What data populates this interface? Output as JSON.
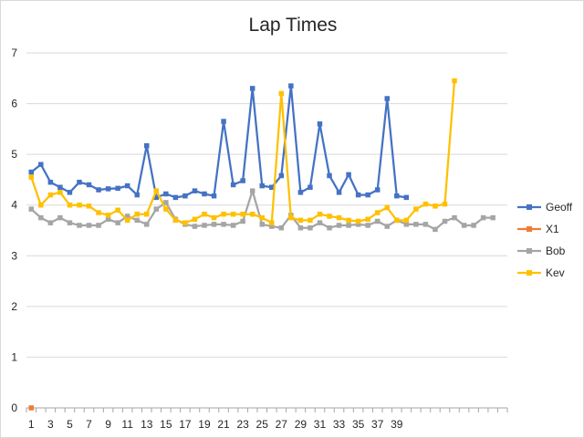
{
  "chart_data": {
    "type": "line",
    "title": "Lap Times",
    "xlabel": "",
    "ylabel": "",
    "ylim": [
      0,
      7
    ],
    "yticks": [
      0,
      1,
      2,
      3,
      4,
      5,
      6,
      7
    ],
    "x_categories_count": 50,
    "x_tick_labels": [
      "1",
      "3",
      "5",
      "7",
      "9",
      "11",
      "13",
      "15",
      "17",
      "19",
      "21",
      "23",
      "25",
      "27",
      "29",
      "31",
      "33",
      "35",
      "37",
      "39"
    ],
    "grid": true,
    "legend_position": "right",
    "series": [
      {
        "name": "Geoff",
        "color": "#4472c4",
        "values": [
          4.65,
          4.8,
          4.45,
          4.35,
          4.25,
          4.45,
          4.4,
          4.3,
          4.32,
          4.33,
          4.38,
          4.2,
          5.17,
          4.15,
          4.22,
          4.15,
          4.18,
          4.28,
          4.22,
          4.18,
          5.65,
          4.4,
          4.48,
          6.3,
          4.38,
          4.35,
          4.58,
          6.35,
          4.25,
          4.35,
          5.6,
          4.58,
          4.25,
          4.6,
          4.2,
          4.2,
          4.3,
          6.1,
          4.18,
          4.15
        ]
      },
      {
        "name": "X1",
        "color": "#ed7d31",
        "values": [
          0
        ]
      },
      {
        "name": "Bob",
        "color": "#a5a5a5",
        "values": [
          3.92,
          3.75,
          3.65,
          3.75,
          3.65,
          3.6,
          3.6,
          3.6,
          3.72,
          3.65,
          3.78,
          3.7,
          3.62,
          3.92,
          4.05,
          3.72,
          3.62,
          3.58,
          3.6,
          3.62,
          3.62,
          3.6,
          3.68,
          4.28,
          3.62,
          3.58,
          3.55,
          3.8,
          3.55,
          3.55,
          3.65,
          3.55,
          3.6,
          3.6,
          3.62,
          3.6,
          3.68,
          3.58,
          3.7,
          3.62,
          3.62,
          3.62,
          3.52,
          3.68,
          3.75,
          3.6,
          3.6,
          3.75,
          3.75
        ]
      },
      {
        "name": "Kev",
        "color": "#ffc000",
        "values": [
          4.55,
          4.0,
          4.2,
          4.25,
          4.0,
          4.0,
          3.98,
          3.85,
          3.8,
          3.9,
          3.7,
          3.82,
          3.82,
          4.28,
          3.92,
          3.7,
          3.65,
          3.72,
          3.82,
          3.75,
          3.82,
          3.82,
          3.82,
          3.82,
          3.75,
          3.65,
          6.2,
          3.75,
          3.7,
          3.7,
          3.82,
          3.78,
          3.75,
          3.7,
          3.68,
          3.72,
          3.85,
          3.95,
          3.7,
          3.7,
          3.92,
          4.02,
          3.98,
          4.02,
          6.45
        ]
      }
    ]
  }
}
